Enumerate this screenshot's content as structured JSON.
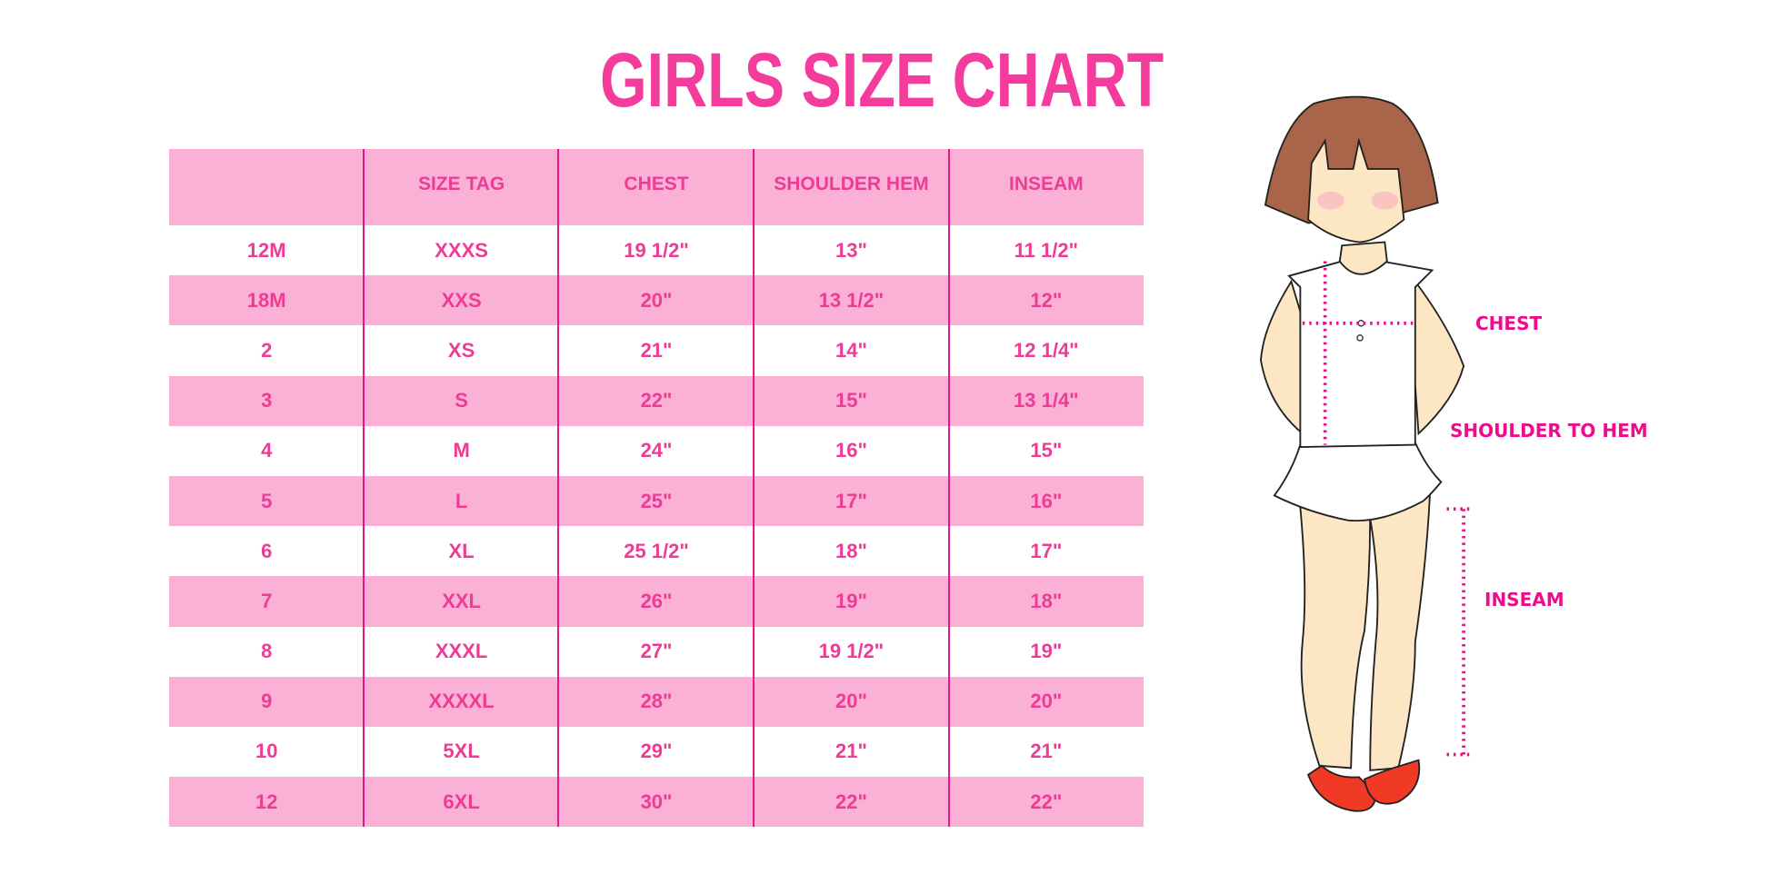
{
  "title": "GIRLS SIZE CHART",
  "table": {
    "headers": [
      "",
      "SIZE TAG",
      "CHEST",
      "SHOULDER HEM",
      "INSEAM"
    ],
    "rows": [
      [
        "12M",
        "XXXS",
        "19 1/2\"",
        "13\"",
        "11 1/2\""
      ],
      [
        "18M",
        "XXS",
        "20\"",
        "13 1/2\"",
        "12\""
      ],
      [
        "2",
        "XS",
        "21\"",
        "14\"",
        "12 1/4\""
      ],
      [
        "3",
        "S",
        "22\"",
        "15\"",
        "13 1/4\""
      ],
      [
        "4",
        "M",
        "24\"",
        "16\"",
        "15\""
      ],
      [
        "5",
        "L",
        "25\"",
        "17\"",
        "16\""
      ],
      [
        "6",
        "XL",
        "25 1/2\"",
        "18\"",
        "17\""
      ],
      [
        "7",
        "XXL",
        "26\"",
        "19\"",
        "18\""
      ],
      [
        "8",
        "XXXL",
        "27\"",
        "19 1/2\"",
        "19\""
      ],
      [
        "9",
        "XXXXL",
        "28\"",
        "20\"",
        "20\""
      ],
      [
        "10",
        "5XL",
        "29\"",
        "21\"",
        "21\""
      ],
      [
        "12",
        "6XL",
        "30\"",
        "22\"",
        "22\""
      ]
    ]
  },
  "figure": {
    "labels": {
      "chest": "CHEST",
      "shoulder_to_hem": "SHOULDER TO HEM",
      "inseam": "INSEAM"
    }
  },
  "colors": {
    "title": "#f43c9c",
    "row_pink": "#fbb0d5",
    "text": "#ee3b96",
    "divider": "#e2178c",
    "label": "#ec0c8c"
  }
}
